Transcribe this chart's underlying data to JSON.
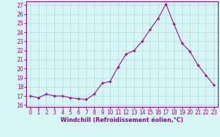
{
  "x": [
    0,
    1,
    2,
    3,
    4,
    5,
    6,
    7,
    8,
    9,
    10,
    11,
    12,
    13,
    14,
    15,
    16,
    17,
    18,
    19,
    20,
    21,
    22,
    23
  ],
  "y": [
    17.0,
    16.8,
    17.2,
    17.0,
    17.0,
    16.8,
    16.7,
    16.6,
    17.2,
    18.4,
    18.6,
    20.2,
    21.6,
    22.0,
    23.0,
    24.3,
    25.5,
    27.1,
    24.9,
    22.8,
    21.9,
    20.4,
    19.3,
    18.2
  ],
  "yticks": [
    16,
    17,
    18,
    19,
    20,
    21,
    22,
    23,
    24,
    25,
    26,
    27
  ],
  "xlabel": "Windchill (Refroidissement éolien,°C)",
  "line_color": "#990099",
  "marker": "+",
  "bg_color": "#d6f5f5",
  "grid_color": "#b0d8d8",
  "label_fontsize": 6.0,
  "tick_fontsize": 5.5
}
